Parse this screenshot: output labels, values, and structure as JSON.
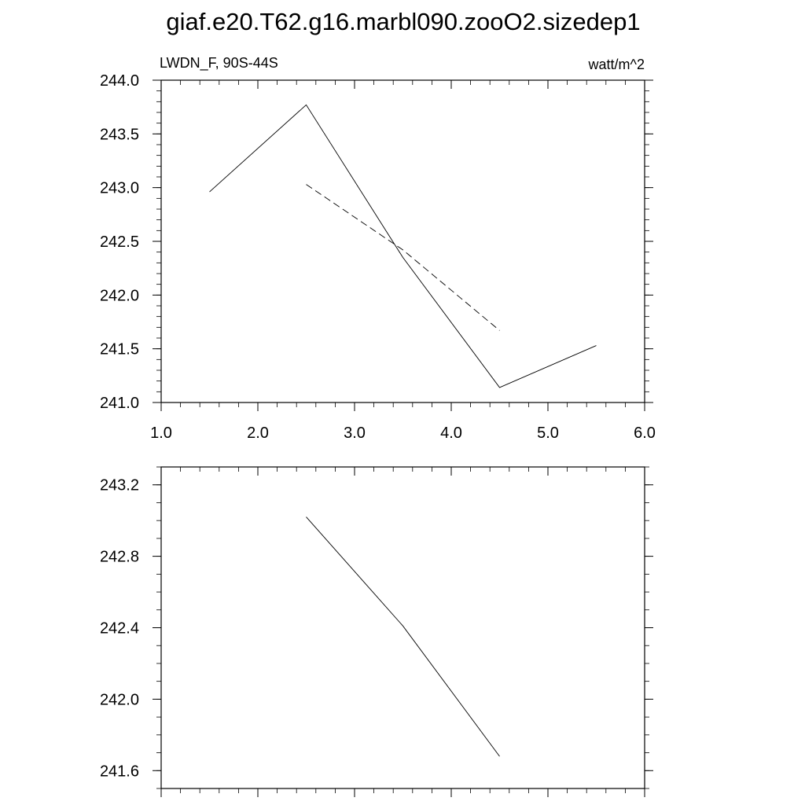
{
  "title": "giaf.e20.T62.g16.marbl090.zooO2.sizedep1",
  "chart_data": [
    {
      "type": "line",
      "left_label": "LWDN_F, 90S-44S",
      "right_label": "watt/m^2",
      "xlim": [
        1.0,
        6.0
      ],
      "ylim": [
        241.0,
        244.0
      ],
      "x_ticks": [
        1.0,
        2.0,
        3.0,
        4.0,
        5.0,
        6.0
      ],
      "x_tick_labels": [
        "1.0",
        "2.0",
        "3.0",
        "4.0",
        "5.0",
        "6.0"
      ],
      "y_ticks": [
        241.0,
        241.5,
        242.0,
        242.5,
        243.0,
        243.5,
        244.0
      ],
      "y_tick_labels": [
        "241.0",
        "241.5",
        "242.0",
        "242.5",
        "243.0",
        "243.5",
        "244.0"
      ],
      "x_minor_step": 0.2,
      "y_minor_step": 0.1,
      "series": [
        {
          "style": "solid",
          "x": [
            1.5,
            2.5,
            3.5,
            4.5,
            5.5
          ],
          "values": [
            242.96,
            243.77,
            242.35,
            241.14,
            241.53
          ]
        },
        {
          "style": "dashed",
          "x": [
            2.5,
            3.5,
            4.5
          ],
          "values": [
            243.03,
            242.42,
            241.67
          ]
        }
      ],
      "grid": false
    },
    {
      "type": "line",
      "xlim": [
        1.0,
        6.0
      ],
      "ylim": [
        241.5,
        243.3
      ],
      "x_ticks": [
        1.0,
        2.0,
        3.0,
        4.0,
        5.0,
        6.0
      ],
      "x_tick_labels": [],
      "y_ticks": [
        241.6,
        242.0,
        242.4,
        242.8,
        243.2
      ],
      "y_tick_labels": [
        "241.6",
        "242.0",
        "242.4",
        "242.8",
        "243.2"
      ],
      "x_minor_step": 0.2,
      "y_minor_step": 0.1,
      "series": [
        {
          "style": "solid",
          "x": [
            2.5,
            3.5,
            4.5
          ],
          "values": [
            243.02,
            242.41,
            241.68
          ]
        }
      ],
      "grid": false
    }
  ]
}
